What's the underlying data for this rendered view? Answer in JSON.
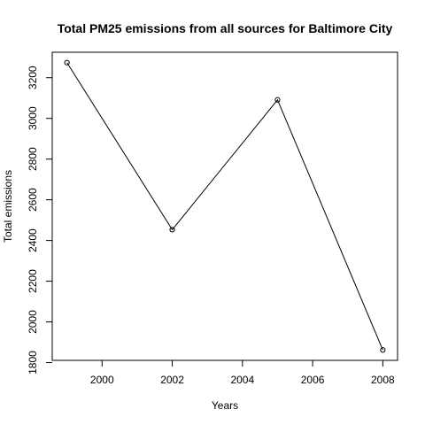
{
  "chart_data": {
    "type": "line",
    "title": "Total PM25 emissions from all sources for Baltimore City",
    "xlabel": "Years",
    "ylabel": "Total emissions",
    "x": [
      1999,
      2002,
      2005,
      2008
    ],
    "y": [
      3274,
      2453,
      3091,
      1862
    ],
    "xlim": [
      1998.58,
      2008.42
    ],
    "ylim": [
      1811,
      3325
    ],
    "xticks": [
      "2000",
      "2002",
      "2004",
      "2006",
      "2008"
    ],
    "yticks": [
      "1800",
      "2000",
      "2200",
      "2400",
      "2600",
      "2800",
      "3000",
      "3200"
    ],
    "markers": "open-circle",
    "grid": false
  }
}
